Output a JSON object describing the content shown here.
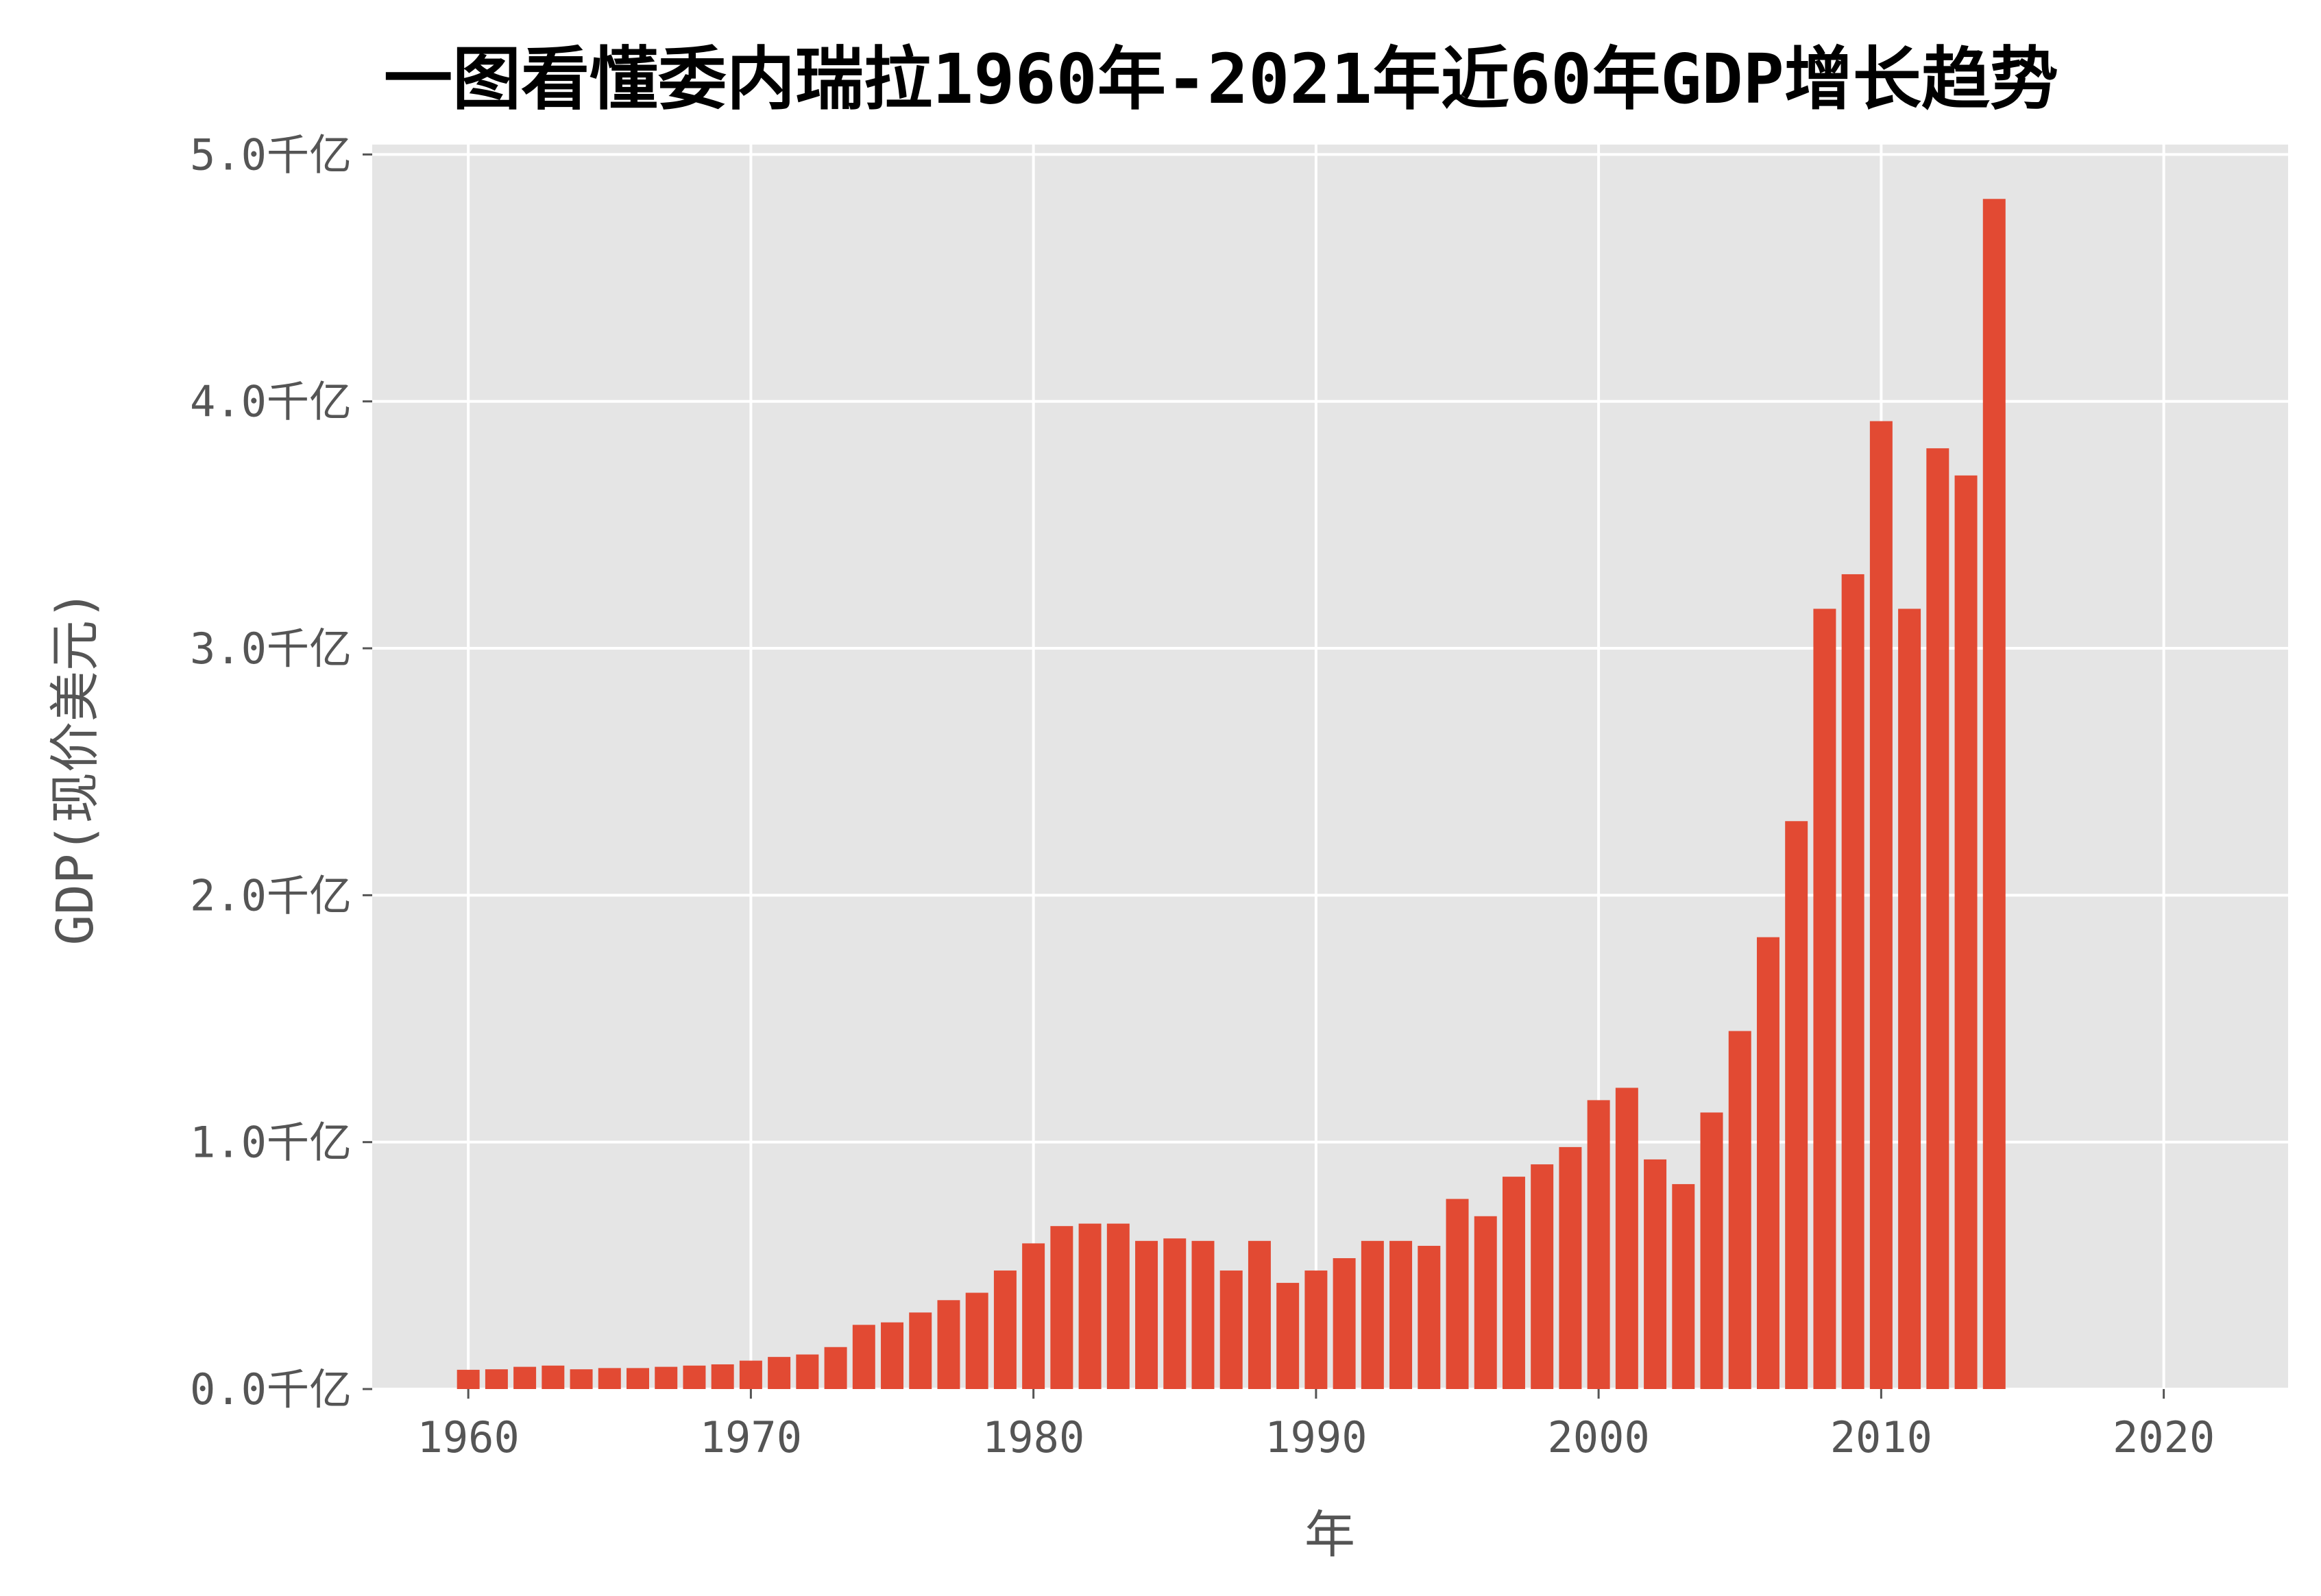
{
  "chart_data": {
    "type": "bar",
    "title": "一图看懂委内瑞拉1960年-2021年近60年GDP增长趋势",
    "xlabel": "年",
    "ylabel": "GDP(现价美元)",
    "x": [
      1960,
      1961,
      1962,
      1963,
      1964,
      1965,
      1966,
      1967,
      1968,
      1969,
      1970,
      1971,
      1972,
      1973,
      1974,
      1975,
      1976,
      1977,
      1978,
      1979,
      1980,
      1981,
      1982,
      1983,
      1984,
      1985,
      1986,
      1987,
      1988,
      1989,
      1990,
      1991,
      1992,
      1993,
      1994,
      1995,
      1996,
      1997,
      1998,
      1999,
      2000,
      2001,
      2002,
      2003,
      2004,
      2005,
      2006,
      2007,
      2008,
      2009,
      2010,
      2011,
      2012,
      2013,
      2014
    ],
    "values": [
      0.078,
      0.08,
      0.09,
      0.095,
      0.08,
      0.085,
      0.085,
      0.09,
      0.095,
      0.1,
      0.115,
      0.13,
      0.14,
      0.17,
      0.26,
      0.27,
      0.31,
      0.36,
      0.39,
      0.48,
      0.59,
      0.66,
      0.67,
      0.67,
      0.6,
      0.61,
      0.6,
      0.48,
      0.6,
      0.43,
      0.48,
      0.53,
      0.6,
      0.6,
      0.58,
      0.77,
      0.7,
      0.86,
      0.91,
      0.98,
      1.17,
      1.22,
      0.93,
      0.83,
      1.12,
      1.45,
      1.83,
      2.3,
      3.16,
      3.3,
      3.92,
      3.16,
      3.81,
      3.7,
      4.82
    ],
    "value_unit": "千亿",
    "xlim": [
      1956.6,
      2024.4
    ],
    "ylim": [
      0,
      5.04
    ],
    "xticks": [
      1960,
      1970,
      1980,
      1990,
      2000,
      2010,
      2020
    ],
    "xtick_labels": [
      "1960",
      "1970",
      "1980",
      "1990",
      "2000",
      "2010",
      "2020"
    ],
    "yticks": [
      0,
      1,
      2,
      3,
      4,
      5
    ],
    "ytick_labels": [
      "0.0千亿",
      "1.0千亿",
      "2.0千亿",
      "3.0千亿",
      "4.0千亿",
      "5.0千亿"
    ],
    "grid": true,
    "colors": {
      "bar": "#E24A33",
      "background": "#E5E5E5",
      "grid": "#FFFFFF"
    }
  }
}
